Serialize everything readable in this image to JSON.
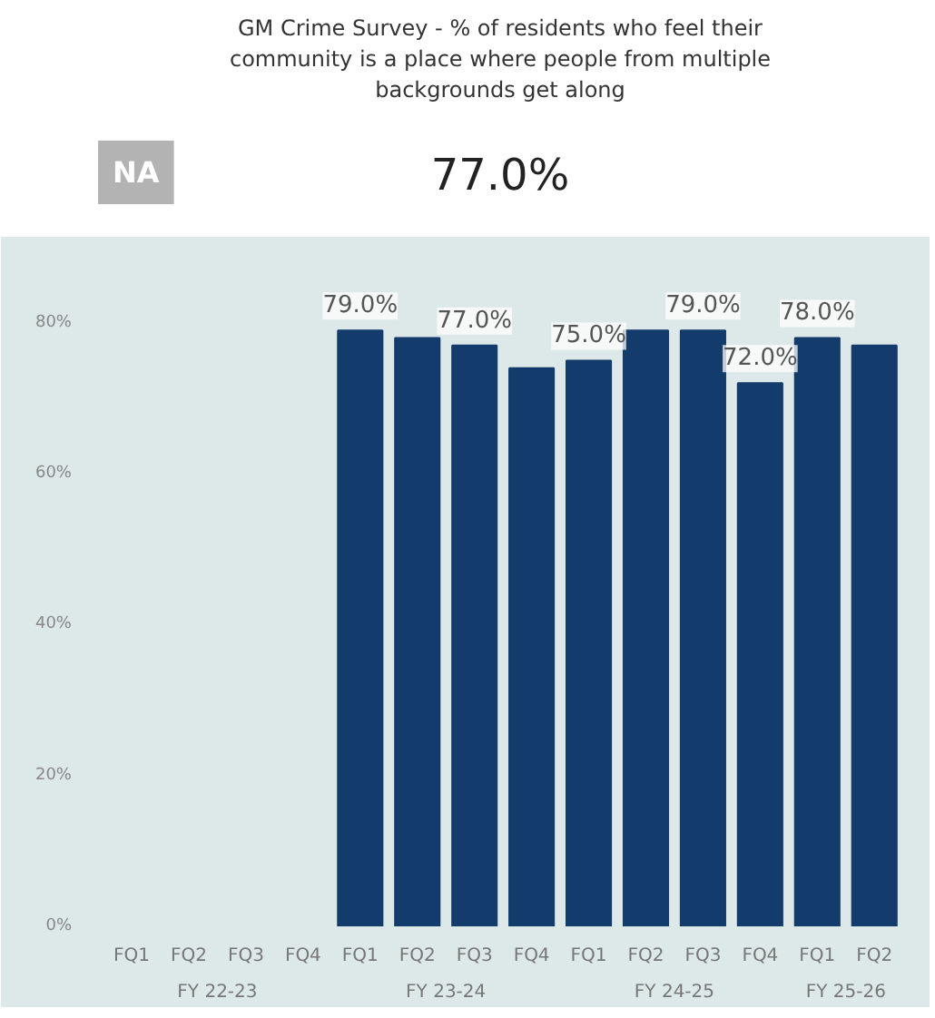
{
  "chart_data": {
    "type": "bar",
    "title": "GM Crime Survey - % of residents who feel their\ncommunity is a place where people from multiple\nbackgrounds get along",
    "subtitle": "77.0%",
    "annotations": [
      "NA",
      "FY 22-23",
      "FY 23-24",
      "FY 24-25",
      "FY 25-26"
    ],
    "categories": [
      "FQ1",
      "FQ2",
      "FQ3",
      "FQ4",
      "FQ1",
      "FQ2",
      "FQ3",
      "FQ4",
      "FQ1",
      "FQ2",
      "FQ3",
      "FQ4",
      "FQ1",
      "FQ2"
    ],
    "values": [
      null,
      null,
      null,
      null,
      79,
      78,
      77,
      74,
      75,
      79,
      79,
      72,
      78,
      77
    ],
    "value_labels": [
      null,
      null,
      null,
      null,
      "79.0%",
      null,
      "77.0%",
      null,
      "75.0%",
      null,
      "79.0%",
      "72.0%",
      "78.0%",
      null
    ],
    "color": "#133b6b",
    "ylim": [
      0,
      89
    ],
    "yticks": [
      {
        "value": 0,
        "label": "0%"
      },
      {
        "value": 20,
        "label": "20%"
      },
      {
        "value": 40,
        "label": "40%"
      },
      {
        "value": 60,
        "label": "60%"
      },
      {
        "value": 80,
        "label": "80%"
      }
    ],
    "grid": false
  }
}
